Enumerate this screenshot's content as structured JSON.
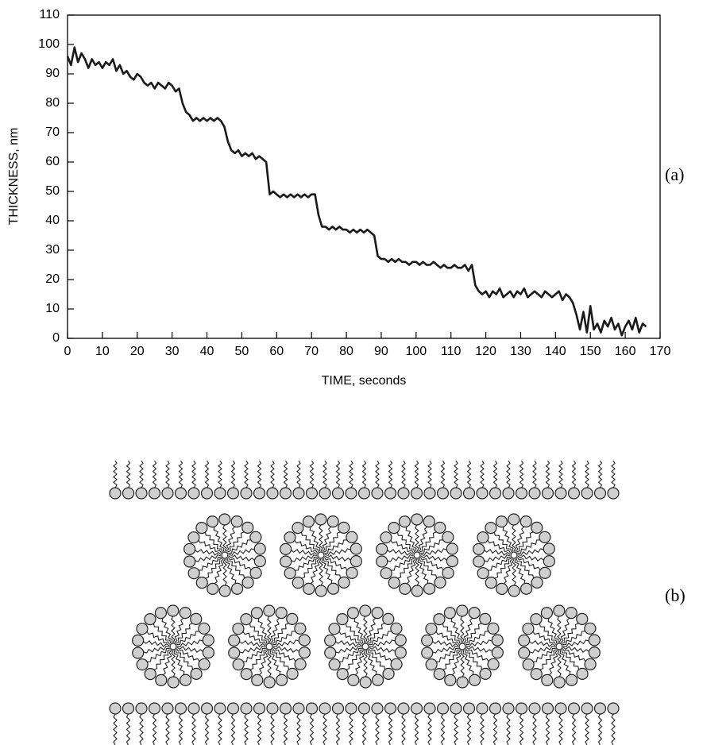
{
  "chart_data": {
    "type": "line",
    "xlabel": "TIME, seconds",
    "ylabel": "THICKNESS, nm",
    "xlim": [
      0,
      170
    ],
    "ylim": [
      0,
      110
    ],
    "xticks": [
      0,
      10,
      20,
      30,
      40,
      50,
      60,
      70,
      80,
      90,
      100,
      110,
      120,
      130,
      140,
      150,
      160,
      170
    ],
    "yticks": [
      0,
      10,
      20,
      30,
      40,
      50,
      60,
      70,
      80,
      90,
      100,
      110
    ],
    "color": "#1a1a1a",
    "x": [
      0,
      1,
      2,
      3,
      4,
      5,
      6,
      7,
      8,
      9,
      10,
      11,
      12,
      13,
      14,
      15,
      16,
      17,
      18,
      19,
      20,
      21,
      22,
      23,
      24,
      25,
      26,
      27,
      28,
      29,
      30,
      31,
      32,
      33,
      34,
      35,
      36,
      37,
      38,
      39,
      40,
      41,
      42,
      43,
      44,
      45,
      46,
      47,
      48,
      49,
      50,
      51,
      52,
      53,
      54,
      55,
      56,
      57,
      58,
      59,
      60,
      61,
      62,
      63,
      64,
      65,
      66,
      67,
      68,
      69,
      70,
      71,
      72,
      73,
      74,
      75,
      76,
      77,
      78,
      79,
      80,
      81,
      82,
      83,
      84,
      85,
      86,
      87,
      88,
      89,
      90,
      91,
      92,
      93,
      94,
      95,
      96,
      97,
      98,
      99,
      100,
      101,
      102,
      103,
      104,
      105,
      106,
      107,
      108,
      109,
      110,
      111,
      112,
      113,
      114,
      115,
      116,
      117,
      118,
      119,
      120,
      121,
      122,
      123,
      124,
      125,
      126,
      127,
      128,
      129,
      130,
      131,
      132,
      133,
      134,
      135,
      136,
      137,
      138,
      139,
      140,
      141,
      142,
      143,
      144,
      145,
      146,
      147,
      148,
      149,
      150,
      151,
      152,
      153,
      154,
      155,
      156,
      157,
      158,
      159,
      160,
      161,
      162,
      163,
      164,
      165,
      166
    ],
    "values": [
      96,
      93,
      99,
      94,
      97,
      95,
      92,
      95,
      93,
      94,
      92,
      94,
      93,
      95,
      91,
      93,
      90,
      91,
      89,
      88,
      90,
      89,
      87,
      86,
      87,
      85,
      87,
      86,
      85,
      87,
      86,
      84,
      85,
      80,
      77,
      76,
      74,
      75,
      74,
      75,
      74,
      75,
      74,
      75,
      74,
      72,
      67,
      64,
      63,
      64,
      62,
      63,
      62,
      63,
      61,
      62,
      61,
      60,
      49,
      50,
      49,
      48,
      49,
      48,
      49,
      48,
      49,
      48,
      49,
      48,
      49,
      49,
      42,
      38,
      38,
      37,
      38,
      37,
      38,
      37,
      37,
      36,
      37,
      36,
      37,
      36,
      37,
      36,
      35,
      28,
      27,
      27,
      26,
      27,
      26,
      27,
      26,
      26,
      25,
      26,
      26,
      25,
      26,
      25,
      25,
      26,
      25,
      24,
      25,
      24,
      24,
      25,
      24,
      24,
      25,
      23,
      25,
      18,
      16,
      15,
      16,
      14,
      16,
      15,
      17,
      14,
      15,
      16,
      14,
      16,
      15,
      17,
      14,
      15,
      16,
      15,
      14,
      16,
      15,
      14,
      15,
      16,
      13,
      15,
      14,
      12,
      8,
      3,
      9,
      2,
      11,
      3,
      5,
      2,
      6,
      4,
      7,
      3,
      5,
      1,
      4,
      6,
      3,
      7,
      2,
      5,
      4
    ]
  },
  "panel_labels": [
    "(a)",
    "(b)"
  ]
}
